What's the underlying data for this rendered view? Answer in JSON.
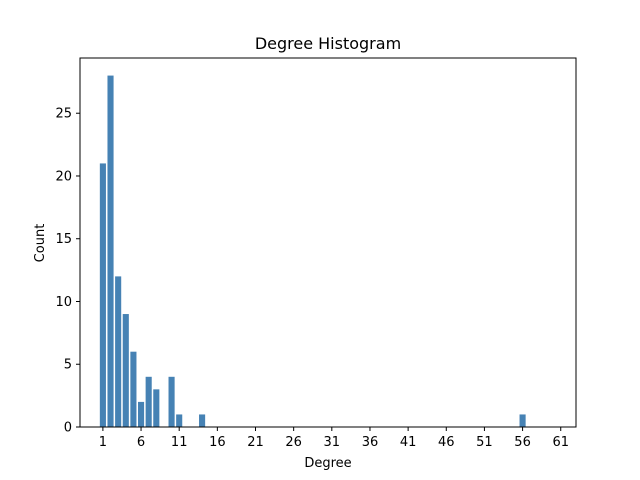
{
  "chart_data": {
    "type": "bar",
    "title": "Degree Histogram",
    "xlabel": "Degree",
    "ylabel": "Count",
    "xlim": [
      -2,
      63
    ],
    "ylim": [
      0,
      29.4
    ],
    "x_ticks": [
      1,
      6,
      11,
      16,
      21,
      26,
      31,
      36,
      41,
      46,
      51,
      56,
      61
    ],
    "y_ticks": [
      0,
      5,
      10,
      15,
      20,
      25
    ],
    "grid": false,
    "legend": "none",
    "bar_color": "#4682b4",
    "bar_width": 0.8,
    "x": [
      1,
      2,
      3,
      4,
      5,
      6,
      7,
      8,
      10,
      11,
      14,
      56
    ],
    "values": [
      21,
      28,
      12,
      9,
      6,
      2,
      4,
      3,
      4,
      1,
      1,
      1
    ]
  }
}
